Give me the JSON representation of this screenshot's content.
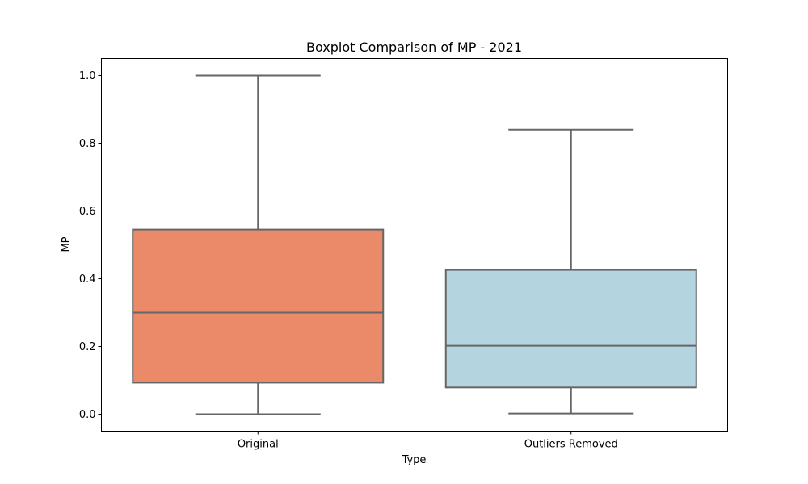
{
  "chart_data": {
    "type": "box",
    "title": "Boxplot Comparison of MP - 2021",
    "xlabel": "Type",
    "ylabel": "MP",
    "ylim": [
      -0.05,
      1.05
    ],
    "yticks": [
      "0.0",
      "0.2",
      "0.4",
      "0.6",
      "0.8",
      "1.0"
    ],
    "ytick_values": [
      0.0,
      0.2,
      0.4,
      0.6,
      0.8,
      1.0
    ],
    "grid": false,
    "categories": [
      "Original",
      "Outliers Removed"
    ],
    "boxes": [
      {
        "category": "Original",
        "whisker_low": 0.0,
        "q1": 0.093,
        "median": 0.3,
        "q3": 0.545,
        "whisker_high": 1.0,
        "color": "#EA8A68"
      },
      {
        "category": "Outliers Removed",
        "whisker_low": 0.002,
        "q1": 0.079,
        "median": 0.202,
        "q3": 0.426,
        "whisker_high": 0.84,
        "color": "#B4D5E0"
      }
    ],
    "line_color": "#666666"
  }
}
